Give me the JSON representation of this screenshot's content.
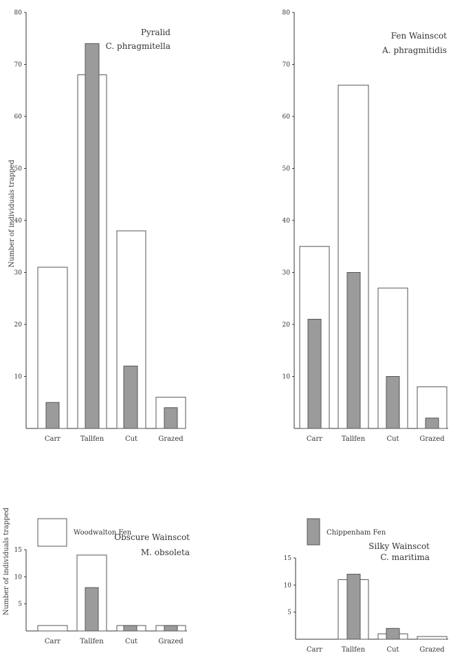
{
  "y_axis_label": "Number of individuals trapped",
  "legend": {
    "woodwalton": "Woodwalton Fen",
    "chippenham": "Chippenham Fen"
  },
  "colors": {
    "woodwalton": "#ffffff",
    "chippenham": "#9b9b9b",
    "outline": "#555555"
  },
  "chart_data": [
    {
      "type": "bar",
      "title": "Pyralid",
      "subtitle": "C. phragmitella",
      "categories": [
        "Carr",
        "Tallfen",
        "Cut",
        "Grazed"
      ],
      "ylim": [
        0,
        80
      ],
      "yticks": [
        10,
        20,
        30,
        40,
        50,
        60,
        70,
        80
      ],
      "series": [
        {
          "name": "Woodwalton Fen",
          "values": [
            31,
            68,
            38,
            6
          ]
        },
        {
          "name": "Chippenham Fen",
          "values": [
            5,
            74,
            12,
            4
          ]
        }
      ]
    },
    {
      "type": "bar",
      "title": "Fen Wainscot",
      "subtitle": "A. phragmitidis",
      "categories": [
        "Carr",
        "Tallfen",
        "Cut",
        "Grazed"
      ],
      "ylim": [
        0,
        80
      ],
      "yticks": [
        10,
        20,
        30,
        40,
        50,
        60,
        70,
        80
      ],
      "series": [
        {
          "name": "Woodwalton Fen",
          "values": [
            35,
            66,
            27,
            8
          ]
        },
        {
          "name": "Chippenham Fen",
          "values": [
            21,
            30,
            10,
            2
          ]
        }
      ]
    },
    {
      "type": "bar",
      "title": "Obscure Wainscot",
      "subtitle": "M. obsoleta",
      "categories": [
        "Carr",
        "Tallfen",
        "Cut",
        "Grazed"
      ],
      "ylim": [
        0,
        15
      ],
      "yticks": [
        5,
        10,
        15
      ],
      "series": [
        {
          "name": "Woodwalton Fen",
          "values": [
            1,
            14,
            1,
            1
          ]
        },
        {
          "name": "Chippenham Fen",
          "values": [
            0,
            8,
            1,
            1
          ]
        }
      ]
    },
    {
      "type": "bar",
      "title": "Silky Wainscot",
      "subtitle": "C. maritima",
      "categories": [
        "Carr",
        "Tallfen",
        "Cut",
        "Grazed"
      ],
      "ylim": [
        0,
        15
      ],
      "yticks": [
        5,
        10,
        15
      ],
      "series": [
        {
          "name": "Woodwalton Fen",
          "values": [
            0,
            11,
            1,
            0.5
          ]
        },
        {
          "name": "Chippenham Fen",
          "values": [
            0,
            12,
            2,
            0
          ]
        }
      ]
    }
  ]
}
